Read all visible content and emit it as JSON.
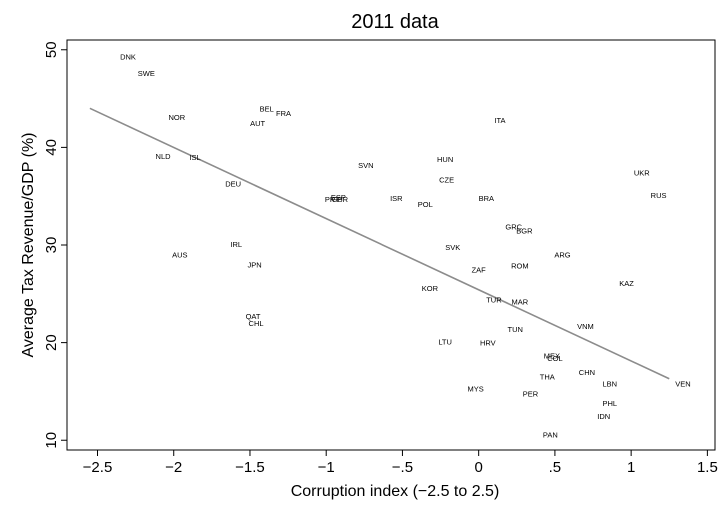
{
  "chart_data": {
    "type": "scatter",
    "title": "2011 data",
    "xlabel": "Corruption index (−2.5 to 2.5)",
    "ylabel": "Average Tax Revenue/GDP (%)",
    "xlim": [
      -2.7,
      1.55
    ],
    "ylim": [
      9,
      51
    ],
    "x_ticks": [
      {
        "value": -2.5,
        "label": "−2.5"
      },
      {
        "value": -2,
        "label": "−2"
      },
      {
        "value": -1.5,
        "label": "−1.5"
      },
      {
        "value": -1,
        "label": "−1"
      },
      {
        "value": -0.5,
        "label": "−.5"
      },
      {
        "value": 0,
        "label": "0"
      },
      {
        "value": 0.5,
        "label": ".5"
      },
      {
        "value": 1,
        "label": "1"
      },
      {
        "value": 1.5,
        "label": "1.5"
      }
    ],
    "y_ticks": [
      {
        "value": 10,
        "label": "10"
      },
      {
        "value": 20,
        "label": "20"
      },
      {
        "value": 30,
        "label": "30"
      },
      {
        "value": 40,
        "label": "40"
      },
      {
        "value": 50,
        "label": "50"
      }
    ],
    "grid": false,
    "marker": "country code label",
    "points": [
      {
        "label": "DNK",
        "x": -2.3,
        "y": 49.2
      },
      {
        "label": "SWE",
        "x": -2.18,
        "y": 47.5
      },
      {
        "label": "NOR",
        "x": -1.98,
        "y": 43.0
      },
      {
        "label": "BEL",
        "x": -1.39,
        "y": 43.9
      },
      {
        "label": "FRA",
        "x": -1.28,
        "y": 43.4
      },
      {
        "label": "AUT",
        "x": -1.45,
        "y": 42.4
      },
      {
        "label": "ITA",
        "x": 0.14,
        "y": 42.7
      },
      {
        "label": "NLD",
        "x": -2.07,
        "y": 39.0
      },
      {
        "label": "ISL",
        "x": -1.86,
        "y": 38.9
      },
      {
        "label": "HUN",
        "x": -0.22,
        "y": 38.7
      },
      {
        "label": "SVN",
        "x": -0.74,
        "y": 38.1
      },
      {
        "label": "UKR",
        "x": 1.07,
        "y": 37.3
      },
      {
        "label": "CZE",
        "x": -0.21,
        "y": 36.6
      },
      {
        "label": "DEU",
        "x": -1.61,
        "y": 36.2
      },
      {
        "label": "RUS",
        "x": 1.18,
        "y": 35.0
      },
      {
        "label": "ESP",
        "x": -0.92,
        "y": 34.8
      },
      {
        "label": "PRT",
        "x": -0.96,
        "y": 34.6
      },
      {
        "label": "GBR",
        "x": -0.91,
        "y": 34.6
      },
      {
        "label": "ISR",
        "x": -0.54,
        "y": 34.7
      },
      {
        "label": "BRA",
        "x": 0.05,
        "y": 34.7
      },
      {
        "label": "POL",
        "x": -0.35,
        "y": 34.1
      },
      {
        "label": "GRC",
        "x": 0.23,
        "y": 31.8
      },
      {
        "label": "BGR",
        "x": 0.3,
        "y": 31.4
      },
      {
        "label": "IRL",
        "x": -1.59,
        "y": 30.0
      },
      {
        "label": "SVK",
        "x": -0.17,
        "y": 29.7
      },
      {
        "label": "AUS",
        "x": -1.96,
        "y": 28.9
      },
      {
        "label": "ARG",
        "x": 0.55,
        "y": 28.9
      },
      {
        "label": "JPN",
        "x": -1.47,
        "y": 27.9
      },
      {
        "label": "ROM",
        "x": 0.27,
        "y": 27.8
      },
      {
        "label": "ZAF",
        "x": 0.0,
        "y": 27.4
      },
      {
        "label": "KAZ",
        "x": 0.97,
        "y": 26.0
      },
      {
        "label": "KOR",
        "x": -0.32,
        "y": 25.5
      },
      {
        "label": "TUR",
        "x": 0.1,
        "y": 24.3
      },
      {
        "label": "MAR",
        "x": 0.27,
        "y": 24.1
      },
      {
        "label": "QAT",
        "x": -1.48,
        "y": 22.6
      },
      {
        "label": "CHL",
        "x": -1.46,
        "y": 21.9
      },
      {
        "label": "VNM",
        "x": 0.7,
        "y": 21.6
      },
      {
        "label": "TUN",
        "x": 0.24,
        "y": 21.3
      },
      {
        "label": "LTU",
        "x": -0.22,
        "y": 20.0
      },
      {
        "label": "HRV",
        "x": 0.06,
        "y": 19.9
      },
      {
        "label": "MEX",
        "x": 0.48,
        "y": 18.6
      },
      {
        "label": "COL",
        "x": 0.5,
        "y": 18.3
      },
      {
        "label": "CHN",
        "x": 0.71,
        "y": 16.9
      },
      {
        "label": "THA",
        "x": 0.45,
        "y": 16.4
      },
      {
        "label": "VEN",
        "x": 1.34,
        "y": 15.7
      },
      {
        "label": "LBN",
        "x": 0.86,
        "y": 15.7
      },
      {
        "label": "MYS",
        "x": -0.02,
        "y": 15.2
      },
      {
        "label": "PER",
        "x": 0.34,
        "y": 14.7
      },
      {
        "label": "PHL",
        "x": 0.86,
        "y": 13.7
      },
      {
        "label": "IDN",
        "x": 0.82,
        "y": 12.4
      },
      {
        "label": "PAN",
        "x": 0.47,
        "y": 10.5
      }
    ],
    "fit_line": {
      "x": [
        -2.55,
        1.25
      ],
      "y": [
        44.0,
        16.3
      ],
      "color": "#8c8c8c"
    }
  }
}
